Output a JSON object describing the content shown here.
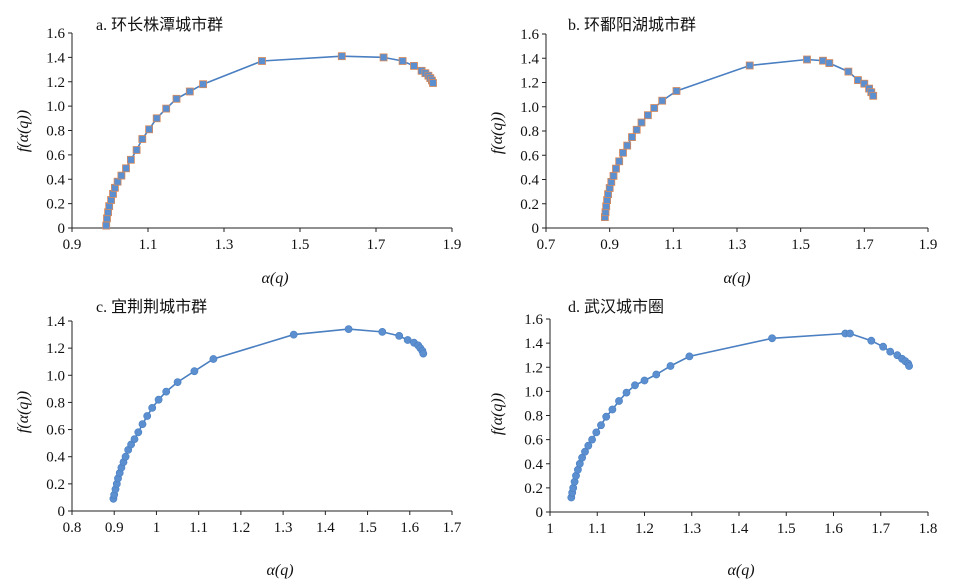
{
  "chart_data": [
    {
      "type": "scatter",
      "title": "a. 环长株潭城市群",
      "xlabel": "α(q)",
      "ylabel": "f(α(q))",
      "xlim": [
        0.9,
        1.9
      ],
      "ylim": [
        0,
        1.6
      ],
      "xticks": [
        "0.9",
        "1.1",
        "1.3",
        "1.5",
        "1.7",
        "1.9"
      ],
      "yticks": [
        "0",
        "0.2",
        "0.4",
        "0.6",
        "0.8",
        "1.0",
        "1.2",
        "1.4",
        "1.6"
      ],
      "marker": "square",
      "marker_color": "#5b8fd0",
      "line_color": "#4a7fc1",
      "x": [
        0.99,
        0.992,
        0.995,
        0.998,
        1.003,
        1.008,
        1.013,
        1.02,
        1.03,
        1.042,
        1.055,
        1.07,
        1.085,
        1.103,
        1.123,
        1.148,
        1.175,
        1.21,
        1.245,
        1.4,
        1.61,
        1.72,
        1.77,
        1.8,
        1.82,
        1.83,
        1.838,
        1.843,
        1.847,
        1.85
      ],
      "y": [
        0.02,
        0.08,
        0.13,
        0.18,
        0.23,
        0.28,
        0.33,
        0.38,
        0.43,
        0.49,
        0.56,
        0.64,
        0.73,
        0.81,
        0.9,
        0.98,
        1.06,
        1.12,
        1.18,
        1.37,
        1.41,
        1.4,
        1.37,
        1.33,
        1.29,
        1.27,
        1.25,
        1.23,
        1.21,
        1.19
      ]
    },
    {
      "type": "scatter",
      "title": "b. 环鄱阳湖城市群",
      "xlabel": "α(q)",
      "ylabel": "f(α(q))",
      "xlim": [
        0.7,
        1.9
      ],
      "ylim": [
        0,
        1.6
      ],
      "xticks": [
        "0.7",
        "0.9",
        "1.1",
        "1.3",
        "1.5",
        "1.7",
        "1.9"
      ],
      "yticks": [
        "0",
        "0.2",
        "0.4",
        "0.6",
        "0.8",
        "1.0",
        "1.2",
        "1.4",
        "1.6"
      ],
      "marker": "square",
      "marker_color": "#5b8fd0",
      "line_color": "#4a7fc1",
      "x": [
        0.885,
        0.887,
        0.889,
        0.892,
        0.895,
        0.9,
        0.905,
        0.912,
        0.92,
        0.93,
        0.942,
        0.955,
        0.97,
        0.985,
        1.0,
        1.02,
        1.04,
        1.065,
        1.11,
        1.34,
        1.52,
        1.57,
        1.59,
        1.65,
        1.68,
        1.7,
        1.715,
        1.722,
        1.728
      ],
      "y": [
        0.09,
        0.13,
        0.18,
        0.23,
        0.28,
        0.33,
        0.38,
        0.43,
        0.49,
        0.55,
        0.62,
        0.68,
        0.75,
        0.81,
        0.87,
        0.93,
        0.99,
        1.05,
        1.13,
        1.34,
        1.39,
        1.38,
        1.36,
        1.29,
        1.22,
        1.19,
        1.15,
        1.12,
        1.09
      ]
    },
    {
      "type": "scatter",
      "title": "c. 宜荆荆城市群",
      "xlabel": "α(q)",
      "ylabel": "f(α(q))",
      "xlim": [
        0.8,
        1.7
      ],
      "ylim": [
        0,
        1.4
      ],
      "xticks": [
        "0.8",
        "0.9",
        "1",
        "1.1",
        "1.2",
        "1.3",
        "1.4",
        "1.5",
        "1.6",
        "1.7"
      ],
      "yticks": [
        "0",
        "0.2",
        "0.4",
        "0.6",
        "0.8",
        "1.0",
        "1.2",
        "1.4"
      ],
      "marker": "circle",
      "marker_color": "#5b8fd0",
      "line_color": "#4a7fc1",
      "x": [
        0.898,
        0.9,
        0.903,
        0.906,
        0.909,
        0.913,
        0.917,
        0.922,
        0.927,
        0.933,
        0.94,
        0.948,
        0.957,
        0.967,
        0.978,
        0.99,
        1.005,
        1.023,
        1.05,
        1.09,
        1.135,
        1.325,
        1.455,
        1.535,
        1.575,
        1.595,
        1.61,
        1.62,
        1.625,
        1.63,
        1.632
      ],
      "y": [
        0.09,
        0.12,
        0.16,
        0.2,
        0.24,
        0.28,
        0.32,
        0.36,
        0.4,
        0.45,
        0.49,
        0.53,
        0.58,
        0.64,
        0.7,
        0.76,
        0.82,
        0.88,
        0.95,
        1.03,
        1.12,
        1.3,
        1.34,
        1.32,
        1.29,
        1.26,
        1.24,
        1.22,
        1.2,
        1.18,
        1.16
      ]
    },
    {
      "type": "scatter",
      "title": "d. 武汉城市圈",
      "xlabel": "α(q)",
      "ylabel": "f(α(q))",
      "xlim": [
        1.0,
        1.8
      ],
      "ylim": [
        0,
        1.6
      ],
      "xticks": [
        "1",
        "1.1",
        "1.2",
        "1.3",
        "1.4",
        "1.5",
        "1.6",
        "1.7",
        "1.8"
      ],
      "yticks": [
        "0",
        "0.2",
        "0.4",
        "0.6",
        "0.8",
        "1.0",
        "1.2",
        "1.4",
        "1.6"
      ],
      "marker": "circle",
      "marker_color": "#5b8fd0",
      "line_color": "#4a7fc1",
      "x": [
        1.045,
        1.047,
        1.049,
        1.052,
        1.055,
        1.059,
        1.063,
        1.068,
        1.074,
        1.081,
        1.089,
        1.098,
        1.108,
        1.119,
        1.132,
        1.146,
        1.162,
        1.18,
        1.2,
        1.225,
        1.255,
        1.295,
        1.47,
        1.625,
        1.635,
        1.68,
        1.705,
        1.72,
        1.735,
        1.745,
        1.752,
        1.758,
        1.76
      ],
      "y": [
        0.12,
        0.16,
        0.2,
        0.25,
        0.3,
        0.35,
        0.4,
        0.45,
        0.5,
        0.55,
        0.6,
        0.66,
        0.72,
        0.79,
        0.85,
        0.92,
        0.99,
        1.05,
        1.09,
        1.14,
        1.21,
        1.29,
        1.44,
        1.48,
        1.48,
        1.42,
        1.37,
        1.33,
        1.3,
        1.27,
        1.25,
        1.23,
        1.21
      ]
    }
  ]
}
